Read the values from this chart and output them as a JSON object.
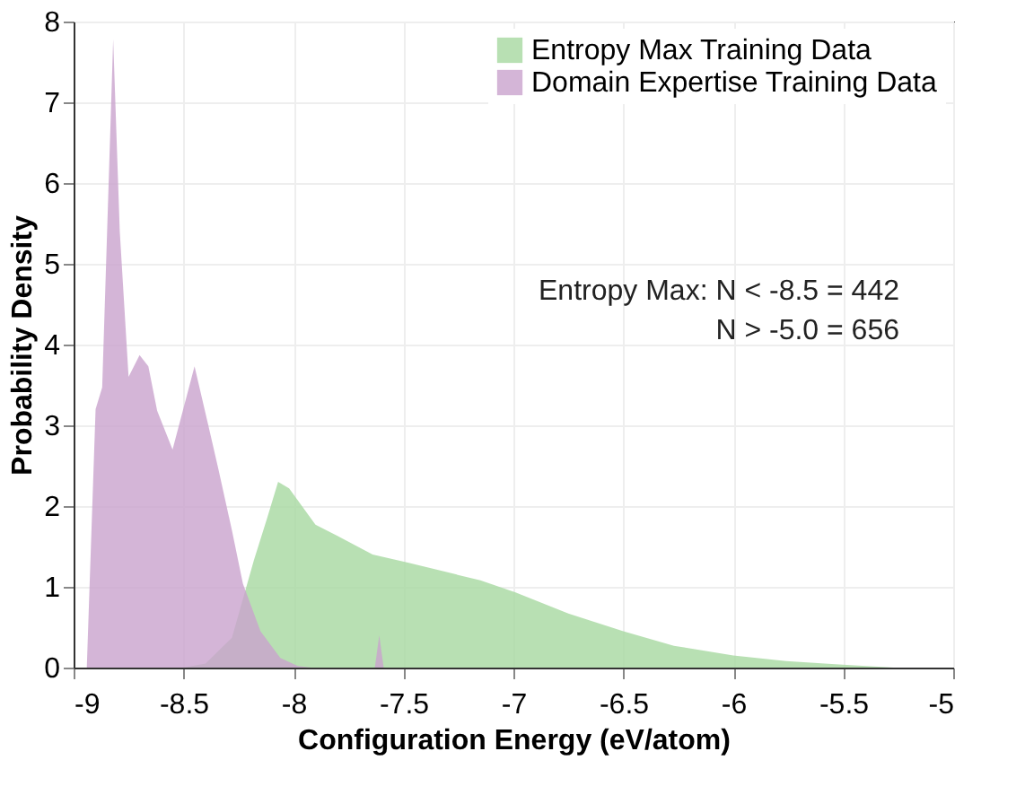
{
  "chart_data": {
    "type": "area",
    "xlabel": "Configuration Energy (eV/atom)",
    "ylabel": "Probability Density",
    "xlim": [
      -9,
      -5
    ],
    "xticks": [
      -9,
      -8.5,
      -8,
      -7.5,
      -7,
      -6.5,
      -6,
      -5.5,
      -5
    ],
    "ylim": [
      0,
      8
    ],
    "yticks": [
      0,
      1,
      2,
      3,
      4,
      5,
      6,
      7,
      8
    ],
    "grid": true,
    "legend": "top right",
    "annotations": [
      "Entropy Max: N < -8.5 = 442",
      "N > -5.0 = 656"
    ],
    "series": [
      {
        "name": "Entropy Max Training Data",
        "color": "#a6d8a0",
        "x": [
          -8.5,
          -8.4,
          -8.28,
          -8.18,
          -8.12,
          -8.07,
          -8.02,
          -7.9,
          -7.8,
          -7.64,
          -7.48,
          -7.15,
          -6.99,
          -6.75,
          -6.5,
          -6.27,
          -6.0,
          -5.76,
          -5.52,
          -5.27
        ],
        "values": [
          0,
          0.05,
          0.37,
          1.33,
          1.85,
          2.3,
          2.22,
          1.77,
          1.63,
          1.4,
          1.3,
          1.08,
          0.93,
          0.67,
          0.45,
          0.27,
          0.15,
          0.08,
          0.04,
          0
        ]
      },
      {
        "name": "Domain Expertise Training Data",
        "color": "#c9a3cd",
        "x": [
          -8.94,
          -8.9,
          -8.87,
          -8.82,
          -8.79,
          -8.75,
          -8.7,
          -8.66,
          -8.62,
          -8.55,
          -8.45,
          -8.39,
          -8.34,
          -8.28,
          -8.23,
          -8.15,
          -8.06,
          -7.98,
          -7.92,
          -7.63,
          -7.61,
          -7.59
        ],
        "values": [
          0,
          3.2,
          3.47,
          7.78,
          5.4,
          3.6,
          3.87,
          3.73,
          3.18,
          2.7,
          3.73,
          3.03,
          2.44,
          1.7,
          1.04,
          0.45,
          0.12,
          0.02,
          0,
          0,
          0.4,
          0
        ]
      }
    ]
  }
}
